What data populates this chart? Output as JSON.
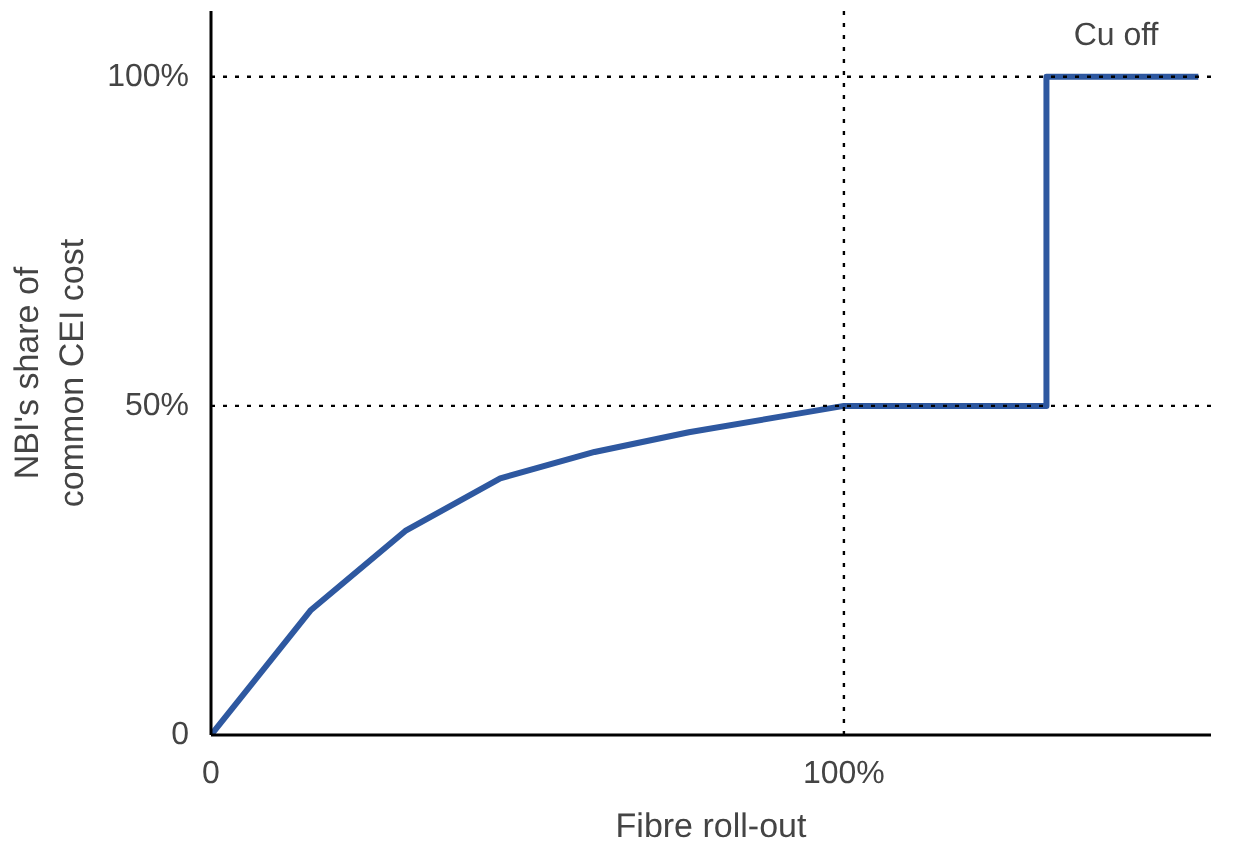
{
  "chart_data": {
    "type": "line",
    "xlabel": "Fibre roll-out",
    "ylabel": "NBI's share of\ncommon CEI cost",
    "xlim": [
      0,
      158
    ],
    "ylim": [
      0,
      110
    ],
    "xticks": [
      {
        "value": 0,
        "label": "0"
      },
      {
        "value": 100,
        "label": "100%"
      }
    ],
    "yticks": [
      {
        "value": 0,
        "label": "0"
      },
      {
        "value": 50,
        "label": "50%"
      },
      {
        "value": 100,
        "label": "100%"
      }
    ],
    "line_style": "solid",
    "series": [
      {
        "color": "#2e58a0",
        "x": [
          0,
          15.8,
          30.7,
          45.7,
          60.6,
          75.5,
          100,
          132,
          132,
          156
        ],
        "values": [
          0,
          19,
          31,
          39,
          43,
          46,
          50,
          50,
          100,
          100
        ]
      }
    ],
    "ref_lines": [
      {
        "axis": "y",
        "value": 100,
        "line_style": "dotted",
        "color": "#000000"
      },
      {
        "axis": "y",
        "value": 50,
        "line_style": "dotted",
        "color": "#000000"
      },
      {
        "axis": "x",
        "value": 100,
        "line_style": "dotted",
        "color": "#000000"
      }
    ],
    "annotations": [
      {
        "text": "Cu off",
        "x": 143,
        "y": 100
      }
    ]
  }
}
